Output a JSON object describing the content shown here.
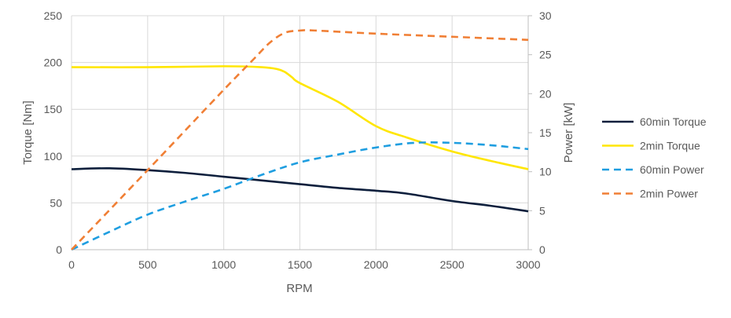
{
  "chart_data": {
    "type": "line",
    "title": "",
    "xlabel": "RPM",
    "ylabel": "Torque [Nm]",
    "y2label": "Power [kW]",
    "xlim": [
      0,
      3000
    ],
    "ylim": [
      0,
      250
    ],
    "y2lim": [
      0,
      30
    ],
    "xticks": [
      0,
      500,
      1000,
      1500,
      2000,
      2500,
      3000
    ],
    "yticks": [
      0,
      50,
      100,
      150,
      200,
      250
    ],
    "y2ticks": [
      0,
      5,
      10,
      15,
      20,
      25,
      30
    ],
    "grid": true,
    "legend_position": "right",
    "series": [
      {
        "name": "60min Torque",
        "axis": "left",
        "color": "#0d1f3c",
        "dash": false,
        "x": [
          0,
          250,
          500,
          750,
          1000,
          1250,
          1500,
          1750,
          2000,
          2200,
          2500,
          2750,
          3000
        ],
        "y": [
          86,
          87,
          85,
          82,
          78,
          74,
          70,
          66,
          63,
          60,
          52,
          47,
          41
        ]
      },
      {
        "name": "2min Torque",
        "axis": "left",
        "color": "#ffe600",
        "dash": false,
        "x": [
          0,
          500,
          1000,
          1250,
          1350,
          1400,
          1450,
          1500,
          1750,
          2000,
          2200,
          2500,
          2750,
          3000
        ],
        "y": [
          195,
          195,
          196,
          195,
          193,
          190,
          184,
          178,
          158,
          132,
          120,
          105,
          95,
          86
        ]
      },
      {
        "name": "60min Power",
        "axis": "right",
        "color": "#1f9ee0",
        "dash": true,
        "x": [
          0,
          250,
          500,
          750,
          1000,
          1250,
          1500,
          1750,
          2000,
          2250,
          2500,
          2750,
          3000
        ],
        "y": [
          0,
          2.3,
          4.5,
          6.2,
          7.8,
          9.6,
          11.2,
          12.2,
          13.1,
          13.7,
          13.7,
          13.4,
          12.9
        ]
      },
      {
        "name": "2min Power",
        "axis": "right",
        "color": "#f07f35",
        "dash": true,
        "x": [
          0,
          500,
          1000,
          1200,
          1300,
          1400,
          1500,
          1600,
          2000,
          2500,
          3000
        ],
        "y": [
          0,
          10.2,
          20.5,
          24.5,
          26.5,
          27.8,
          28.1,
          28.1,
          27.7,
          27.3,
          26.9
        ]
      }
    ]
  }
}
